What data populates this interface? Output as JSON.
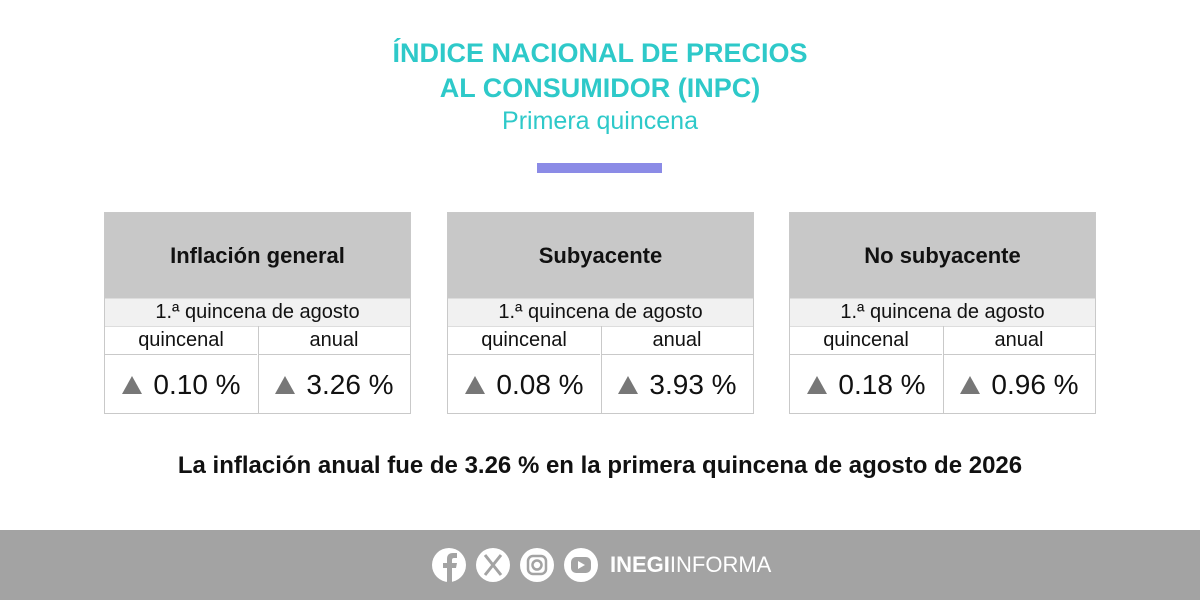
{
  "header": {
    "title_line1": "ÍNDICE NACIONAL DE PRECIOS",
    "title_line2": "AL CONSUMIDOR (INPC)",
    "subtitle": "Primera quincena"
  },
  "panels": [
    {
      "title": "Inflación general",
      "period": "1.ª quincena de agosto",
      "columns": [
        "quincenal",
        "anual"
      ],
      "values": [
        "0.10 %",
        "3.26 %"
      ]
    },
    {
      "title": "Subyacente",
      "period": "1.ª quincena de agosto",
      "columns": [
        "quincenal",
        "anual"
      ],
      "values": [
        "0.08 %",
        "3.93 %"
      ]
    },
    {
      "title": "No subyacente",
      "period": "1.ª quincena de agosto",
      "columns": [
        "quincenal",
        "anual"
      ],
      "values": [
        "0.18 %",
        "0.96 %"
      ]
    }
  ],
  "headline": "La inflación anual fue de 3.26 % en la primera quincena de agosto de 2026",
  "footer": {
    "brand_bold": "INEGI",
    "brand_light": "INFORMA"
  }
}
